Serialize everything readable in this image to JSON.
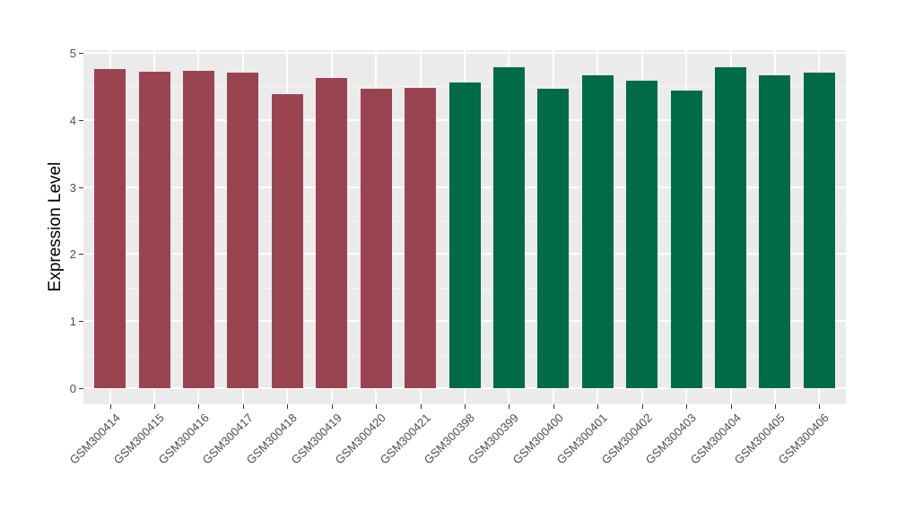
{
  "figure": {
    "background": "#FFFFFF",
    "panel_background": "#EBEBEB",
    "grid_color": "#FFFFFF",
    "tick_color": "#333333",
    "tick_label_color": "#4D4D4D",
    "axis_title_color": "#000000"
  },
  "chart_data": {
    "type": "bar",
    "title": "",
    "xlabel": "",
    "ylabel": "Expression Level",
    "ylim": [
      0,
      5
    ],
    "yticks": [
      0,
      1,
      2,
      3,
      4,
      5
    ],
    "yticks_minor": [
      0.5,
      1.5,
      2.5,
      3.5,
      4.5
    ],
    "grid": "white major/minor horizontal gridlines and white vertical major gridlines on gray panel",
    "legend_position": "none",
    "categories": [
      "GSM300414",
      "GSM300415",
      "GSM300416",
      "GSM300417",
      "GSM300418",
      "GSM300419",
      "GSM300420",
      "GSM300421",
      "GSM300398",
      "GSM300399",
      "GSM300400",
      "GSM300401",
      "GSM300402",
      "GSM300403",
      "GSM300404",
      "GSM300405",
      "GSM300406"
    ],
    "values": [
      4.76,
      4.72,
      4.73,
      4.71,
      4.39,
      4.63,
      4.46,
      4.48,
      4.56,
      4.78,
      4.46,
      4.67,
      4.58,
      4.44,
      4.79,
      4.66,
      4.7
    ],
    "groups": [
      {
        "name": "group-maroon",
        "color": "#9B4451",
        "start_index": 0,
        "end_index": 7
      },
      {
        "name": "group-green",
        "color": "#006B47",
        "start_index": 8,
        "end_index": 16
      }
    ]
  }
}
